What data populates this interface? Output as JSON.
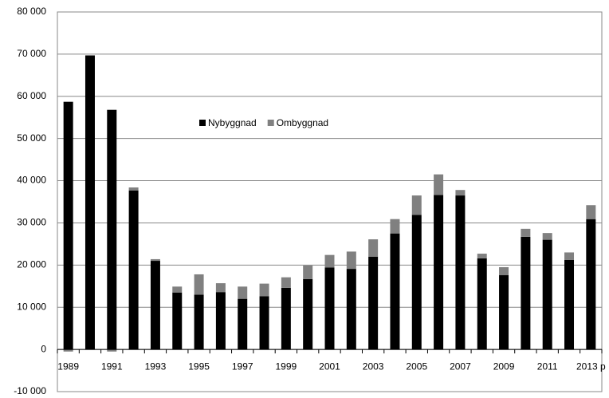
{
  "chart_data": {
    "type": "stacked_bar",
    "categories": [
      "1989",
      null,
      "1991",
      null,
      "1993",
      null,
      "1995",
      null,
      "1997",
      null,
      "1999",
      null,
      "2001",
      null,
      "2003",
      null,
      "2005",
      null,
      "2007",
      null,
      "2009",
      null,
      "2011",
      null,
      "2013 p"
    ],
    "series": [
      {
        "name": "Nybyggnad",
        "color": "#000000",
        "values": [
          58700,
          69700,
          56800,
          37700,
          21000,
          13500,
          13000,
          13600,
          12000,
          12600,
          14600,
          16700,
          19400,
          19100,
          22000,
          27500,
          31900,
          36600,
          36500,
          21600,
          17600,
          26700,
          26000,
          21200,
          30900
        ]
      },
      {
        "name": "Ombyggnad",
        "color": "#808080",
        "values": [
          -500,
          0,
          -500,
          700,
          400,
          1400,
          4800,
          2100,
          2900,
          3000,
          2500,
          3200,
          3000,
          4100,
          4100,
          3400,
          4600,
          4900,
          1300,
          1100,
          1900,
          1900,
          1600,
          1800,
          3300
        ]
      }
    ],
    "ylim": [
      -10000,
      80000
    ],
    "yticks": [
      {
        "value": -10000,
        "label": "-10 000"
      },
      0,
      {
        "value": 10000,
        "label": "10 000"
      },
      {
        "value": 20000,
        "label": "20 000"
      },
      {
        "value": 30000,
        "label": "30 000"
      },
      {
        "value": 40000,
        "label": "40 000"
      },
      {
        "value": 50000,
        "label": "50 000"
      },
      {
        "value": 60000,
        "label": "60 000"
      },
      {
        "value": 70000,
        "label": "70 000"
      },
      {
        "value": 80000,
        "label": "80 000"
      }
    ],
    "grid": true,
    "legend": "upper left"
  }
}
